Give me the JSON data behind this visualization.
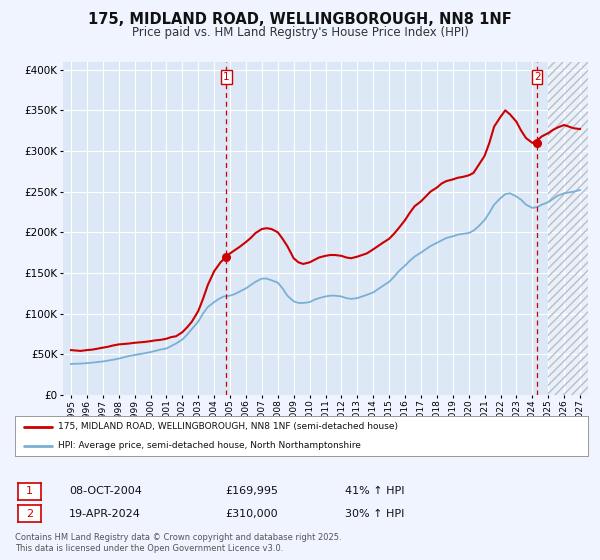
{
  "title": "175, MIDLAND ROAD, WELLINGBOROUGH, NN8 1NF",
  "subtitle": "Price paid vs. HM Land Registry's House Price Index (HPI)",
  "background_color": "#f0f4ff",
  "plot_background": "#dce8f5",
  "grid_color": "#ffffff",
  "red_line_color": "#cc0000",
  "blue_line_color": "#7bafd4",
  "xlabel": "",
  "ylabel": "",
  "xlim": [
    1994.5,
    2027.5
  ],
  "ylim": [
    0,
    410000
  ],
  "yticks": [
    0,
    50000,
    100000,
    150000,
    200000,
    250000,
    300000,
    350000,
    400000
  ],
  "ytick_labels": [
    "£0",
    "£50K",
    "£100K",
    "£150K",
    "£200K",
    "£250K",
    "£300K",
    "£350K",
    "£400K"
  ],
  "xticks": [
    1995,
    1996,
    1997,
    1998,
    1999,
    2000,
    2001,
    2002,
    2003,
    2004,
    2005,
    2006,
    2007,
    2008,
    2009,
    2010,
    2011,
    2012,
    2013,
    2014,
    2015,
    2016,
    2017,
    2018,
    2019,
    2020,
    2021,
    2022,
    2023,
    2024,
    2025,
    2026,
    2027
  ],
  "legend_red": "175, MIDLAND ROAD, WELLINGBOROUGH, NN8 1NF (semi-detached house)",
  "legend_blue": "HPI: Average price, semi-detached house, North Northamptonshire",
  "marker1_x": 2004.77,
  "marker1_y": 169995,
  "marker2_x": 2024.3,
  "marker2_y": 310000,
  "annotation_copyright": "Contains HM Land Registry data © Crown copyright and database right 2025.\nThis data is licensed under the Open Government Licence v3.0.",
  "table_row1": [
    "1",
    "08-OCT-2004",
    "£169,995",
    "41% ↑ HPI"
  ],
  "table_row2": [
    "2",
    "19-APR-2024",
    "£310,000",
    "30% ↑ HPI"
  ],
  "hatch_start": 2025.0,
  "red_line_data_x": [
    1995.0,
    1995.3,
    1995.6,
    1996.0,
    1996.3,
    1996.6,
    1997.0,
    1997.3,
    1997.6,
    1998.0,
    1998.3,
    1998.6,
    1999.0,
    1999.3,
    1999.6,
    2000.0,
    2000.3,
    2000.6,
    2001.0,
    2001.3,
    2001.6,
    2002.0,
    2002.3,
    2002.6,
    2003.0,
    2003.3,
    2003.6,
    2004.0,
    2004.4,
    2004.77,
    2005.0,
    2005.3,
    2005.6,
    2006.0,
    2006.3,
    2006.6,
    2007.0,
    2007.3,
    2007.6,
    2008.0,
    2008.3,
    2008.6,
    2009.0,
    2009.3,
    2009.6,
    2010.0,
    2010.3,
    2010.6,
    2011.0,
    2011.3,
    2011.6,
    2012.0,
    2012.3,
    2012.6,
    2013.0,
    2013.3,
    2013.6,
    2014.0,
    2014.3,
    2014.6,
    2015.0,
    2015.3,
    2015.6,
    2016.0,
    2016.3,
    2016.6,
    2017.0,
    2017.3,
    2017.6,
    2018.0,
    2018.3,
    2018.6,
    2019.0,
    2019.3,
    2019.6,
    2020.0,
    2020.3,
    2020.6,
    2021.0,
    2021.3,
    2021.6,
    2022.0,
    2022.3,
    2022.6,
    2023.0,
    2023.3,
    2023.6,
    2024.0,
    2024.3,
    2024.6,
    2025.0,
    2025.3,
    2025.6,
    2026.0,
    2026.3,
    2026.6,
    2027.0
  ],
  "red_line_data_y": [
    55000,
    54500,
    54000,
    55000,
    55500,
    56500,
    58000,
    59000,
    60500,
    62000,
    62500,
    63000,
    64000,
    64500,
    65000,
    66000,
    67000,
    67500,
    69000,
    71000,
    72000,
    77000,
    83000,
    90000,
    103000,
    118000,
    135000,
    152000,
    163000,
    169995,
    174000,
    178000,
    182000,
    188000,
    193000,
    199000,
    204000,
    205000,
    204000,
    200000,
    192000,
    183000,
    168000,
    163000,
    161000,
    163000,
    166000,
    169000,
    171000,
    172000,
    172000,
    171000,
    169000,
    168000,
    170000,
    172000,
    174000,
    179000,
    183000,
    187000,
    192000,
    198000,
    205000,
    215000,
    224000,
    232000,
    238000,
    244000,
    250000,
    255000,
    260000,
    263000,
    265000,
    267000,
    268000,
    270000,
    273000,
    282000,
    294000,
    310000,
    330000,
    342000,
    350000,
    345000,
    336000,
    325000,
    316000,
    310000,
    313000,
    318000,
    322000,
    326000,
    329000,
    332000,
    330000,
    328000,
    327000
  ],
  "blue_line_data_x": [
    1995.0,
    1995.3,
    1995.6,
    1996.0,
    1996.3,
    1996.6,
    1997.0,
    1997.3,
    1997.6,
    1998.0,
    1998.3,
    1998.6,
    1999.0,
    1999.3,
    1999.6,
    2000.0,
    2000.3,
    2000.6,
    2001.0,
    2001.3,
    2001.6,
    2002.0,
    2002.3,
    2002.6,
    2003.0,
    2003.3,
    2003.6,
    2004.0,
    2004.3,
    2004.6,
    2005.0,
    2005.3,
    2005.6,
    2006.0,
    2006.3,
    2006.6,
    2007.0,
    2007.3,
    2007.6,
    2008.0,
    2008.3,
    2008.6,
    2009.0,
    2009.3,
    2009.6,
    2010.0,
    2010.3,
    2010.6,
    2011.0,
    2011.3,
    2011.6,
    2012.0,
    2012.3,
    2012.6,
    2013.0,
    2013.3,
    2013.6,
    2014.0,
    2014.3,
    2014.6,
    2015.0,
    2015.3,
    2015.6,
    2016.0,
    2016.3,
    2016.6,
    2017.0,
    2017.3,
    2017.6,
    2018.0,
    2018.3,
    2018.6,
    2019.0,
    2019.3,
    2019.6,
    2020.0,
    2020.3,
    2020.6,
    2021.0,
    2021.3,
    2021.6,
    2022.0,
    2022.3,
    2022.6,
    2023.0,
    2023.3,
    2023.6,
    2024.0,
    2024.3,
    2024.6,
    2025.0,
    2025.3,
    2025.6,
    2026.0,
    2026.3,
    2026.6,
    2027.0
  ],
  "blue_line_data_y": [
    38000,
    38200,
    38400,
    39000,
    39500,
    40200,
    41000,
    42000,
    43000,
    44500,
    46000,
    47500,
    49000,
    50000,
    51000,
    52500,
    54000,
    55500,
    57000,
    60000,
    63000,
    68000,
    74000,
    81000,
    90000,
    100000,
    108000,
    114000,
    118000,
    121000,
    122000,
    124000,
    127000,
    131000,
    135000,
    139000,
    143000,
    143000,
    141000,
    138000,
    131000,
    122000,
    115000,
    113000,
    113000,
    114000,
    117000,
    119000,
    121000,
    122000,
    122000,
    121000,
    119000,
    118000,
    119000,
    121000,
    123000,
    126000,
    130000,
    134000,
    139000,
    145000,
    152000,
    159000,
    165000,
    170000,
    175000,
    179000,
    183000,
    187000,
    190000,
    193000,
    195000,
    197000,
    198000,
    199000,
    202000,
    207000,
    215000,
    224000,
    234000,
    242000,
    247000,
    248000,
    244000,
    240000,
    234000,
    230000,
    231000,
    234000,
    237000,
    241000,
    245000,
    248000,
    249000,
    250000,
    252000
  ]
}
